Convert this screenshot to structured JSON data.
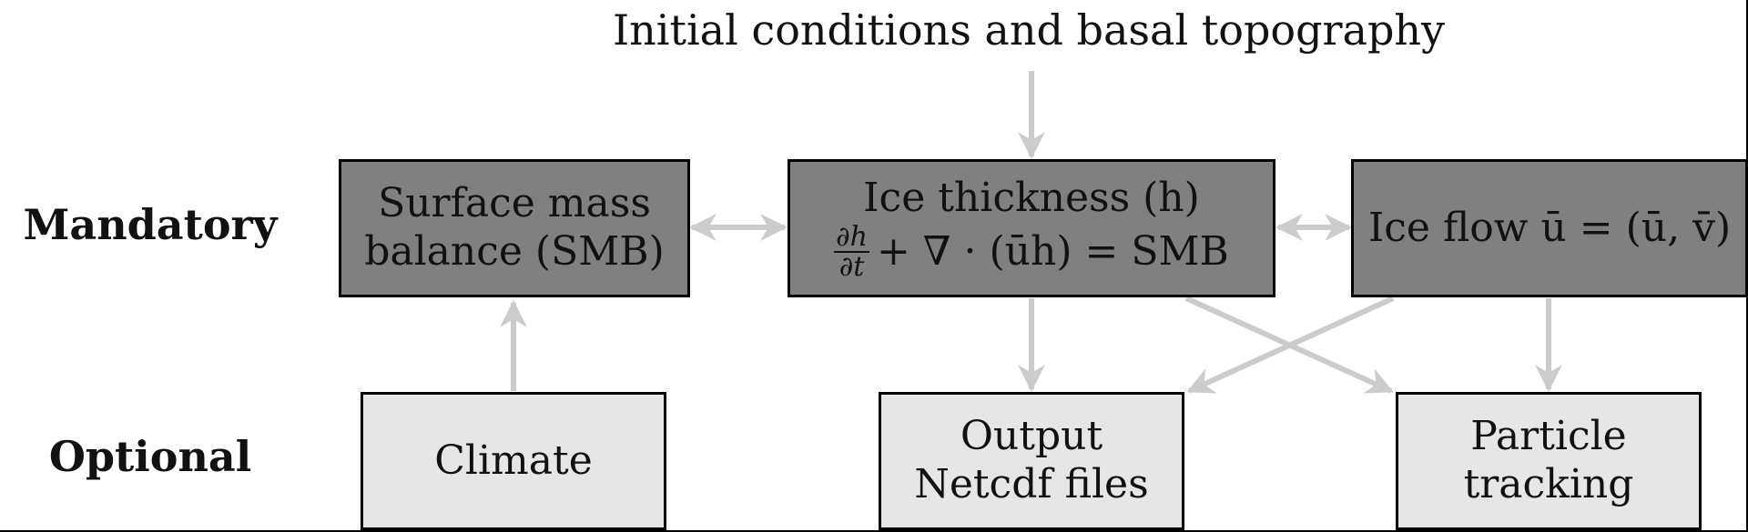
{
  "title": "Initial conditions and basal topography",
  "rows": {
    "mandatory": "Mandatory",
    "optional": "Optional"
  },
  "boxes": {
    "smb": {
      "line1": "Surface mass",
      "line2": "balance (SMB)"
    },
    "thickness": {
      "line1": "Ice thickness (h)",
      "frac_num": "∂h",
      "frac_den": "∂t",
      "eq_rest": "+ ∇ · (ūh) = SMB"
    },
    "iceflow": {
      "text": "Ice flow ū = (ū, v̄)"
    },
    "climate": {
      "text": "Climate"
    },
    "output": {
      "line1": "Output",
      "line2": "Netcdf files"
    },
    "particle": {
      "line1": "Particle",
      "line2": "tracking"
    }
  },
  "colors": {
    "mandatory_fill": "#808080",
    "optional_fill": "#e6e6e6",
    "arrow": "#cccccc"
  }
}
